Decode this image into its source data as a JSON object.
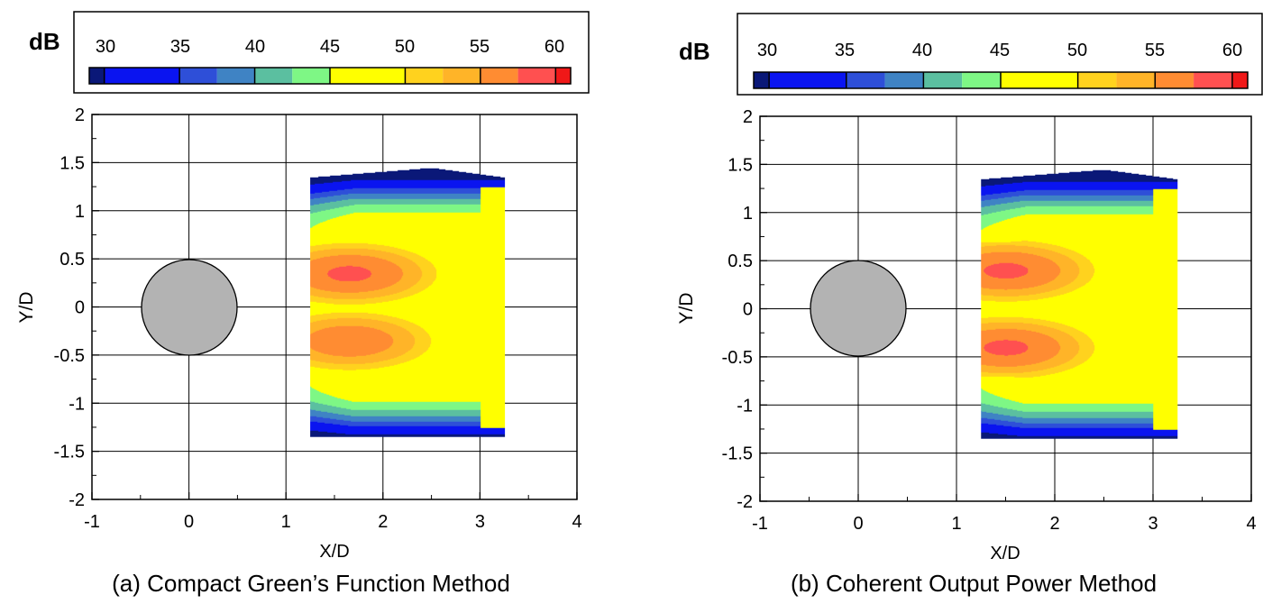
{
  "colorbar": {
    "unit": "dB",
    "ticks": [
      "30",
      "35",
      "40",
      "45",
      "50",
      "55",
      "60"
    ],
    "bands": [
      {
        "from": 28,
        "to": 29,
        "color": "#0a1878"
      },
      {
        "from": 29,
        "to": 34,
        "color": "#0a14f0"
      },
      {
        "from": 34,
        "to": 36.5,
        "color": "#2e4fd8"
      },
      {
        "from": 36.5,
        "to": 39,
        "color": "#3f83c4"
      },
      {
        "from": 39,
        "to": 41.5,
        "color": "#5bbfa0"
      },
      {
        "from": 41.5,
        "to": 44,
        "color": "#7ef785"
      },
      {
        "from": 44,
        "to": 49,
        "color": "#ffff00"
      },
      {
        "from": 49,
        "to": 51.5,
        "color": "#ffd21e"
      },
      {
        "from": 51.5,
        "to": 54,
        "color": "#ffb428"
      },
      {
        "from": 54,
        "to": 56.5,
        "color": "#ff8c32"
      },
      {
        "from": 56.5,
        "to": 59,
        "color": "#ff5050"
      },
      {
        "from": 59,
        "to": 60,
        "color": "#f01818"
      }
    ],
    "dividers": [
      29,
      34,
      39,
      44,
      49,
      54,
      59
    ]
  },
  "cylinder": {
    "center_x": 0,
    "center_y": 0,
    "radius": 0.5,
    "fill": "#b3b3b3"
  },
  "chart_data": [
    {
      "type": "heatmap",
      "caption": "(a) Compact Green’s Function Method",
      "xlabel": "X/D",
      "ylabel": "Y/D",
      "xlim": [
        -1,
        4
      ],
      "ylim": [
        -2,
        2
      ],
      "xticks": [
        "-1",
        "0",
        "1",
        "2",
        "3",
        "4"
      ],
      "yticks": [
        "2",
        "1.5",
        "1",
        "0.5",
        "0",
        "-0.5",
        "-1",
        "-1.5",
        "-2"
      ],
      "grid": true,
      "colorbar_label": "dB",
      "domain": {
        "x": [
          1.25,
          3.25
        ],
        "y_bottom": -1.35,
        "y_top_left": 1.35,
        "y_top_peak": 1.45,
        "x_top_peak": 2.5,
        "y_top_right": 1.35
      },
      "yellow_band_x": [
        3.0,
        3.25
      ],
      "symmetric_lobes": true,
      "lobes": [
        {
          "center_x": 1.65,
          "center_y": 0.35,
          "peak_db": 57
        },
        {
          "center_x": 1.65,
          "center_y": -0.35,
          "peak_db": 56
        }
      ]
    },
    {
      "type": "heatmap",
      "caption": "(b) Coherent Output Power Method",
      "xlabel": "X/D",
      "ylabel": "Y/D",
      "xlim": [
        -1,
        4
      ],
      "ylim": [
        -2,
        2
      ],
      "xticks": [
        "-1",
        "0",
        "1",
        "2",
        "3",
        "4"
      ],
      "yticks": [
        "2",
        "1.5",
        "1",
        "0.5",
        "0",
        "-0.5",
        "-1",
        "-1.5",
        "-2"
      ],
      "grid": true,
      "colorbar_label": "dB",
      "domain": {
        "x": [
          1.25,
          3.25
        ],
        "y_bottom": -1.35,
        "y_top_left": 1.35,
        "y_top_peak": 1.45,
        "x_top_peak": 2.5,
        "y_top_right": 1.35
      },
      "yellow_band_x": [
        3.0,
        3.25
      ],
      "symmetric_lobes": true,
      "lobes": [
        {
          "center_x": 1.5,
          "center_y": 0.4,
          "peak_db": 57
        },
        {
          "center_x": 1.5,
          "center_y": -0.4,
          "peak_db": 57
        }
      ]
    }
  ]
}
